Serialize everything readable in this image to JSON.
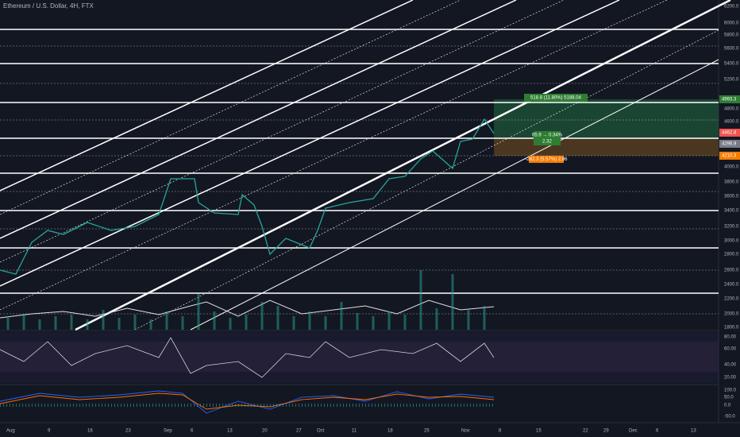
{
  "header": {
    "title": "Ethereum / U.S. Dollar, 4H, FTX"
  },
  "price_axis": [
    "6200.0",
    "6000.0",
    "5800.0",
    "5600.0",
    "5400.0",
    "5200.0",
    "4800.0",
    "4600.0",
    "4000.0",
    "3800.0",
    "3600.0",
    "3400.0",
    "3200.0",
    "3000.0",
    "2800.0",
    "2600.0",
    "2400.0",
    "2200.0",
    "2000.0",
    "1800.0"
  ],
  "price_badges": {
    "target": "4993.3",
    "last": "4462.8",
    "entry": "4296.9",
    "stop": "4210.3"
  },
  "position": {
    "target_label": "518.8 (11.80%) 5188.04",
    "ratio_label": "65.9 → 0.34%",
    "ratio": "2.32",
    "stop_label": "-262.3 (5.57%) 2.86"
  },
  "rsi_axis": [
    "80.00",
    "60.00",
    "40.00",
    "20.00"
  ],
  "macd_axis": [
    "100.0",
    "50.0",
    "0.0",
    "-50.0"
  ],
  "date_axis": [
    "Aug",
    "9",
    "16",
    "23",
    "Sep",
    "6",
    "13",
    "20",
    "27",
    "Oct",
    "11",
    "18",
    "25",
    "Nov",
    "8",
    "15",
    "22",
    "29",
    "Dec",
    "6",
    "13"
  ]
}
